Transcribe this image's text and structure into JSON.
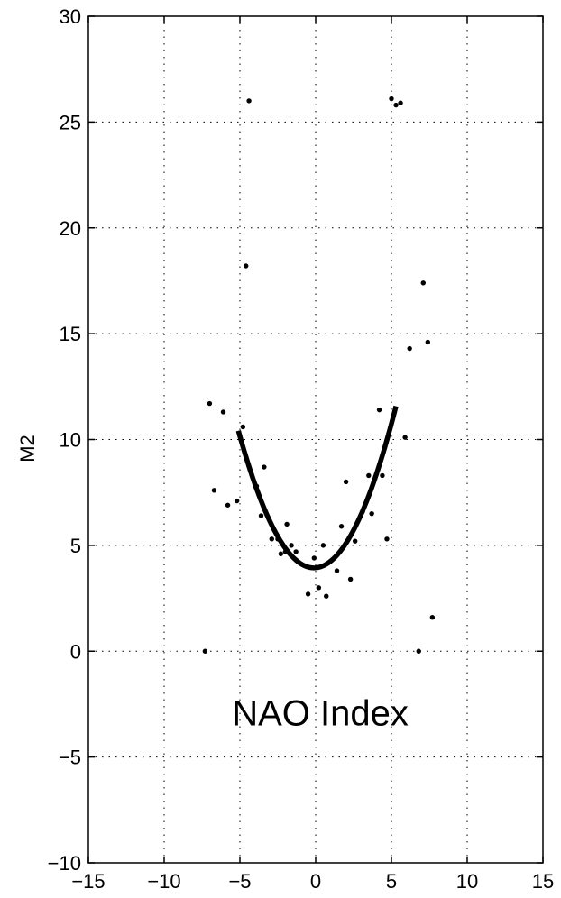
{
  "chart_data": {
    "type": "scatter",
    "title": "",
    "xlabel": "",
    "ylabel": "M2",
    "xlim": [
      -15,
      15
    ],
    "ylim": [
      -10,
      30
    ],
    "xticks": [
      -15,
      -10,
      -5,
      0,
      5,
      10,
      15
    ],
    "yticks": [
      -10,
      -5,
      0,
      5,
      10,
      15,
      20,
      25,
      30
    ],
    "xtick_labels": [
      "−15",
      "−10",
      "−5",
      "0",
      "5",
      "10",
      "15"
    ],
    "ytick_labels": [
      "−10",
      "−5",
      "0",
      "5",
      "10",
      "15",
      "20",
      "25",
      "30"
    ],
    "grid": true,
    "grid_style": "dotted",
    "annotation": {
      "text": "NAO Index",
      "x": 0.3,
      "y": -3.5
    },
    "series": [
      {
        "kind": "scatter",
        "color": "#000000",
        "points": [
          [
            -4.4,
            26.0
          ],
          [
            5.0,
            26.1
          ],
          [
            5.3,
            25.8
          ],
          [
            5.6,
            25.9
          ],
          [
            -4.6,
            18.2
          ],
          [
            7.1,
            17.4
          ],
          [
            6.2,
            14.3
          ],
          [
            7.4,
            14.6
          ],
          [
            -7.0,
            11.7
          ],
          [
            -6.1,
            11.3
          ],
          [
            4.2,
            11.4
          ],
          [
            -4.8,
            10.6
          ],
          [
            5.9,
            10.1
          ],
          [
            -3.4,
            8.7
          ],
          [
            -6.7,
            7.6
          ],
          [
            -5.2,
            7.1
          ],
          [
            -5.8,
            6.9
          ],
          [
            -3.9,
            7.8
          ],
          [
            2.0,
            8.0
          ],
          [
            3.5,
            8.3
          ],
          [
            4.4,
            8.3
          ],
          [
            3.1,
            6.6
          ],
          [
            3.7,
            6.5
          ],
          [
            -3.6,
            6.4
          ],
          [
            -1.9,
            6.0
          ],
          [
            1.7,
            5.9
          ],
          [
            -2.9,
            5.3
          ],
          [
            -2.5,
            5.3
          ],
          [
            0.5,
            5.0
          ],
          [
            2.6,
            5.2
          ],
          [
            4.7,
            5.3
          ],
          [
            -1.6,
            5.0
          ],
          [
            -1.3,
            4.7
          ],
          [
            -2.0,
            4.7
          ],
          [
            -2.3,
            4.6
          ],
          [
            -0.1,
            4.4
          ],
          [
            1.4,
            3.8
          ],
          [
            2.3,
            3.4
          ],
          [
            -0.5,
            2.7
          ],
          [
            0.2,
            3.0
          ],
          [
            0.7,
            2.6
          ],
          [
            7.7,
            1.6
          ],
          [
            -7.3,
            0.0
          ],
          [
            6.8,
            0.0
          ]
        ]
      },
      {
        "kind": "line",
        "color": "#000000",
        "fit": "quadratic",
        "x_range": [
          -5.1,
          5.3
        ],
        "coefficients": {
          "a": 0.2605,
          "b": 0.0593,
          "c": 3.94
        }
      }
    ]
  }
}
